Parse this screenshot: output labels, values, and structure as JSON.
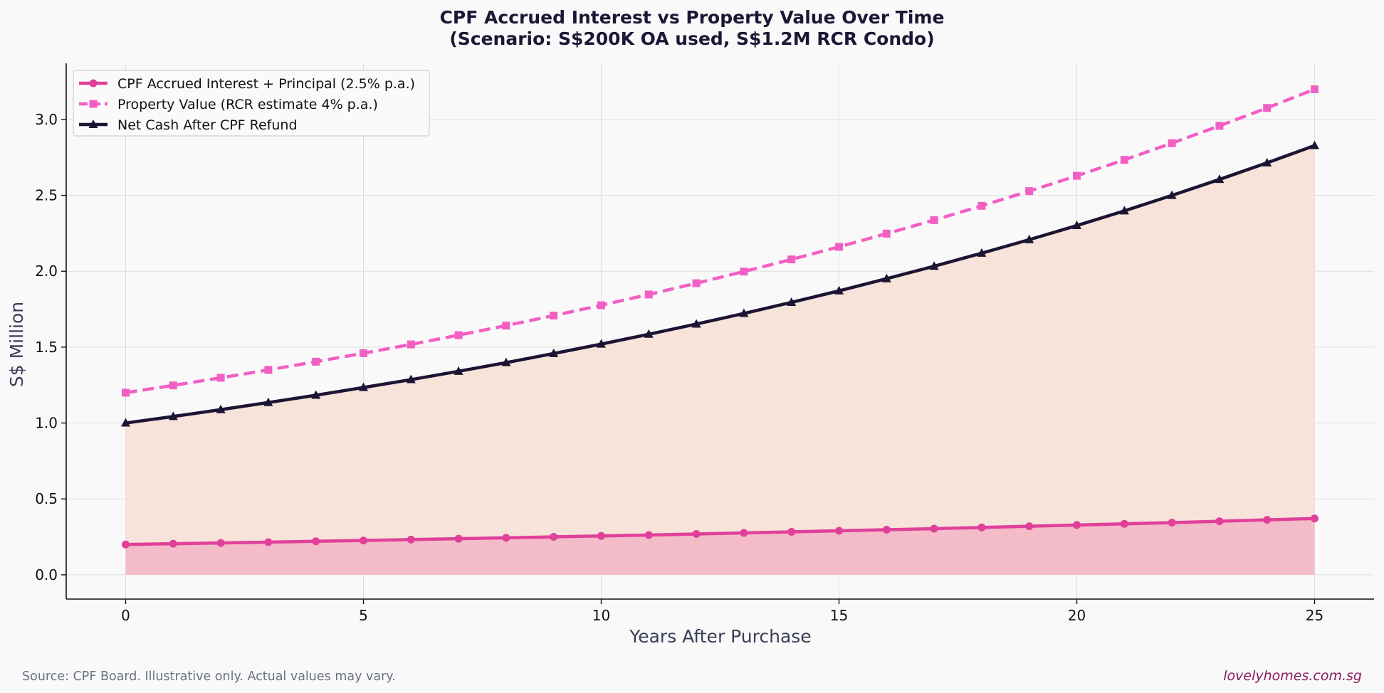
{
  "footer": {
    "source": "Source: CPF Board. Illustrative only. Actual values may vary.",
    "brand": "lovelyhomes.com.sg"
  },
  "colors": {
    "background": "#f9f9fa",
    "cpf": "#e0409a",
    "cpf_fill": "#f4bcc8",
    "property": "#f25fc3",
    "net": "#1c1433",
    "net_fill": "#f8e3da"
  },
  "chart_data": {
    "type": "line",
    "title_lines": [
      "CPF Accrued Interest vs Property Value Over Time",
      "(Scenario: S$200K OA used, S$1.2M RCR Condo)"
    ],
    "xlabel": "Years After Purchase",
    "ylabel": "S$ Million",
    "xlim": [
      -1.25,
      26.25
    ],
    "ylim": [
      -0.16,
      3.37
    ],
    "xticks": [
      0,
      5,
      10,
      15,
      20,
      25
    ],
    "yticks": [
      0.0,
      0.5,
      1.0,
      1.5,
      2.0,
      2.5,
      3.0
    ],
    "grid": true,
    "legend_position": "top-left",
    "x": [
      0,
      1,
      2,
      3,
      4,
      5,
      6,
      7,
      8,
      9,
      10,
      11,
      12,
      13,
      14,
      15,
      16,
      17,
      18,
      19,
      20,
      21,
      22,
      23,
      24,
      25
    ],
    "series": [
      {
        "name": "CPF Accrued Interest + Principal (2.5% p.a.)",
        "style": "solid",
        "marker": "circle",
        "fill": true,
        "values": [
          0.2,
          0.205,
          0.21,
          0.215,
          0.221,
          0.226,
          0.232,
          0.238,
          0.244,
          0.25,
          0.256,
          0.262,
          0.269,
          0.276,
          0.283,
          0.29,
          0.297,
          0.304,
          0.312,
          0.32,
          0.328,
          0.336,
          0.344,
          0.353,
          0.362,
          0.371
        ]
      },
      {
        "name": "Property Value (RCR estimate 4% p.a.)",
        "style": "dashed",
        "marker": "square",
        "fill": false,
        "values": [
          1.2,
          1.248,
          1.298,
          1.35,
          1.404,
          1.46,
          1.518,
          1.579,
          1.642,
          1.708,
          1.776,
          1.847,
          1.921,
          1.998,
          2.078,
          2.161,
          2.248,
          2.337,
          2.431,
          2.528,
          2.629,
          2.734,
          2.844,
          2.958,
          3.076,
          3.199
        ]
      },
      {
        "name": "Net Cash After CPF Refund",
        "style": "solid",
        "marker": "triangle",
        "fill": true,
        "values": [
          1.0,
          1.043,
          1.088,
          1.135,
          1.183,
          1.234,
          1.286,
          1.341,
          1.398,
          1.458,
          1.52,
          1.585,
          1.652,
          1.722,
          1.795,
          1.871,
          1.951,
          2.033,
          2.119,
          2.208,
          2.301,
          2.398,
          2.5,
          2.605,
          2.714,
          2.828
        ]
      }
    ]
  }
}
